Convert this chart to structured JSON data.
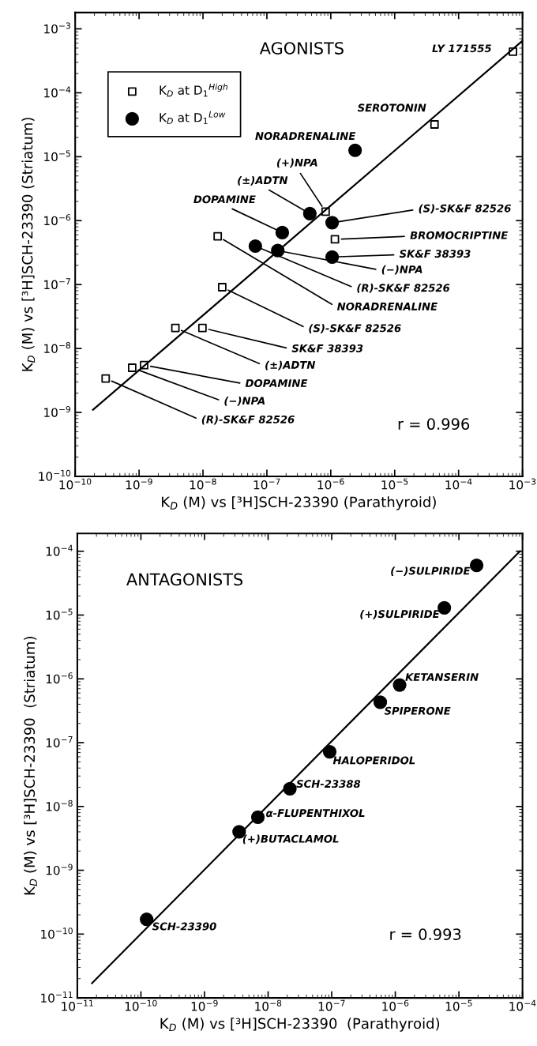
{
  "chart_data": [
    {
      "type": "scatter",
      "title": "AGONISTS",
      "xlabel": "K$_{D}$ (M) vs [³H]SCH-23390 (Parathyroid)",
      "ylabel": "K$_{D}$ (M) vs [³H]SCH-23390 (Striatum)",
      "log": "xy",
      "legend": "top left",
      "grid": false,
      "xlim": [
        1e-10,
        0.001
      ],
      "ylim": [
        1e-10,
        0.0018
      ],
      "xticks": [
        {
          "value": 1e-10,
          "label": "10$^{−10}$"
        },
        {
          "value": 1e-09,
          "label": "10$^{−9}$"
        },
        {
          "value": 1e-08,
          "label": "10$^{−8}$"
        },
        {
          "value": 1e-07,
          "label": "10$^{−7}$"
        },
        {
          "value": 1e-06,
          "label": "10$^{−6}$"
        },
        {
          "value": 1e-05,
          "label": "10$^{−5}$"
        },
        {
          "value": 0.0001,
          "label": "10$^{−4}$"
        },
        {
          "value": 0.001,
          "label": "10$^{−3}$"
        }
      ],
      "yticks": [
        {
          "value": 1e-10,
          "label": "10$^{−10}$"
        },
        {
          "value": 1e-09,
          "label": "10$^{−9}$"
        },
        {
          "value": 1e-08,
          "label": "10$^{−8}$"
        },
        {
          "value": 1e-07,
          "label": "10$^{−7}$"
        },
        {
          "value": 1e-06,
          "label": "10$^{−6}$"
        },
        {
          "value": 1e-05,
          "label": "10$^{−5}$"
        },
        {
          "value": 0.0001,
          "label": "10$^{−4}$"
        },
        {
          "value": 0.001,
          "label": "10$^{−3}$"
        }
      ],
      "series": [
        {
          "name": "K$_{D}$ at D$_{1}$$^{High}$",
          "color": "#000000",
          "marker": "square",
          "x": [
            0.00071,
            4.2e-05,
            8.3e-07,
            1.16e-06,
            1.7e-08,
            2e-08,
            3.7e-09,
            9.8e-09,
            1.2e-09,
            7.8e-10,
            3e-10
          ],
          "values": [
            0.00044,
            3.2e-05,
            1.38e-06,
            5.1e-07,
            5.7e-07,
            9.1e-08,
            2.1e-08,
            2.1e-08,
            5.5e-09,
            5e-09,
            3.4e-09
          ]
        },
        {
          "name": "K$_{D}$ at D$_{1}$$^{Low}$",
          "color": "#000000",
          "marker": "circle",
          "x": [
            2.4e-06,
            4.7e-07,
            1.05e-06,
            1.74e-07,
            6.6e-08,
            1.48e-07,
            1.05e-06
          ],
          "values": [
            1.26e-05,
            1.29e-06,
            9.3e-07,
            6.5e-07,
            4e-07,
            3.4e-07,
            2.7e-07
          ]
        },
        {
          "type": "line",
          "color": "#000000",
          "x": [
            1.9e-10,
            0.001
          ],
          "values": [
            1.1e-09,
            0.00065
          ]
        }
      ],
      "annotations": [
        {
          "text": "LY 171555",
          "x": 0.00071,
          "y": 0.00044
        },
        {
          "text": "SEROTONIN",
          "x": 4.2e-05,
          "y": 3.2e-05
        },
        {
          "text": "NORADRENALINE",
          "x": 2.4e-06,
          "y": 1.26e-05
        },
        {
          "text": "(+)NPA",
          "x": 8.3e-07,
          "y": 1.38e-06
        },
        {
          "text": "(±)ADTN",
          "x": 4.7e-07,
          "y": 1.29e-06
        },
        {
          "text": "DOPAMINE",
          "x": 1.74e-07,
          "y": 6.5e-07
        },
        {
          "text": "(S)-SK&F 82526",
          "x": 1.05e-06,
          "y": 9.3e-07
        },
        {
          "text": "BROMOCRIPTINE",
          "x": 1.16e-06,
          "y": 5.1e-07
        },
        {
          "text": "SK&F 38393",
          "x": 1.05e-06,
          "y": 2.7e-07
        },
        {
          "text": "(−)NPA",
          "x": 1.48e-07,
          "y": 3.4e-07
        },
        {
          "text": "(R)-SK&F 82526",
          "x": 6.6e-08,
          "y": 4e-07
        },
        {
          "text": "NORADRENALINE",
          "x": 1.7e-08,
          "y": 5.7e-07
        },
        {
          "text": "(S)-SK&F 82526",
          "x": 2e-08,
          "y": 9.1e-08
        },
        {
          "text": "SK&F 38393",
          "x": 9.8e-09,
          "y": 2.1e-08
        },
        {
          "text": "(±)ADTN",
          "x": 3.7e-09,
          "y": 2.1e-08
        },
        {
          "text": "DOPAMINE",
          "x": 1.2e-09,
          "y": 5.5e-09
        },
        {
          "text": "(−)NPA",
          "x": 7.8e-10,
          "y": 5e-09
        },
        {
          "text": "(R)-SK&F 82526",
          "x": 3e-10,
          "y": 3.4e-09
        },
        "r = 0.996"
      ]
    },
    {
      "type": "scatter",
      "title": "ANTAGONISTS",
      "xlabel": "K$_{D}$ (M) vs [³H]SCH-23390  (Parathyroid)",
      "ylabel": "K$_{D}$ (M) vs [³H]SCH-23390  (Striatum)",
      "log": "xy",
      "grid": false,
      "xlim": [
        1e-11,
        0.0001
      ],
      "ylim": [
        1e-11,
        0.00019
      ],
      "xticks": [
        {
          "value": 1e-11,
          "label": "10$^{−11}$"
        },
        {
          "value": 1e-10,
          "label": "10$^{−10}$"
        },
        {
          "value": 1e-09,
          "label": "10$^{−9}$"
        },
        {
          "value": 1e-08,
          "label": "10$^{−8}$"
        },
        {
          "value": 1e-07,
          "label": "10$^{−7}$"
        },
        {
          "value": 1e-06,
          "label": "10$^{−6}$"
        },
        {
          "value": 1e-05,
          "label": "10$^{−5}$"
        },
        {
          "value": 0.0001,
          "label": "10$^{−4}$"
        }
      ],
      "yticks": [
        {
          "value": 1e-11,
          "label": "10$^{−11}$"
        },
        {
          "value": 1e-10,
          "label": "10$^{−10}$"
        },
        {
          "value": 1e-09,
          "label": "10$^{−9}$"
        },
        {
          "value": 1e-08,
          "label": "10$^{−8}$"
        },
        {
          "value": 1e-07,
          "label": "10$^{−7}$"
        },
        {
          "value": 1e-06,
          "label": "10$^{−6}$"
        },
        {
          "value": 1e-05,
          "label": "10$^{−5}$"
        },
        {
          "value": 0.0001,
          "label": "10$^{−4}$"
        }
      ],
      "series": [
        {
          "color": "#000000",
          "marker": "circle",
          "x": [
            1.9e-05,
            5.9e-06,
            1.17e-06,
            5.8e-07,
            9.3e-08,
            2.2e-08,
            6.9e-09,
            3.5e-09,
            1.23e-10
          ],
          "values": [
            6e-05,
            1.3e-05,
            8e-07,
            4.3e-07,
            7.2e-08,
            1.9e-08,
            6.8e-09,
            4e-09,
            1.7e-10
          ]
        },
        {
          "type": "line",
          "color": "#000000",
          "x": [
            1.7e-11,
            9.1e-05
          ],
          "values": [
            1.7e-11,
            0.0001
          ]
        }
      ],
      "annotations": [
        {
          "text": "(−)SULPIRIDE",
          "x": 1.9e-05,
          "y": 6e-05
        },
        {
          "text": "(+)SULPIRIDE",
          "x": 5.9e-06,
          "y": 1.3e-05
        },
        {
          "text": "KETANSERIN",
          "x": 1.17e-06,
          "y": 8e-07
        },
        {
          "text": "SPIPERONE",
          "x": 5.8e-07,
          "y": 4.3e-07
        },
        {
          "text": "HALOPERIDOL",
          "x": 9.3e-08,
          "y": 7.2e-08
        },
        {
          "text": "SCH-23388",
          "x": 2.2e-08,
          "y": 1.9e-08
        },
        {
          "text": "α-FLUPENTHIXOL",
          "x": 6.9e-09,
          "y": 6.8e-09
        },
        {
          "text": "(+)BUTACLAMOL",
          "x": 3.5e-09,
          "y": 4e-09
        },
        {
          "text": "SCH-23390",
          "x": 1.23e-10,
          "y": 1.7e-10
        },
        "r = 0.993"
      ]
    }
  ]
}
